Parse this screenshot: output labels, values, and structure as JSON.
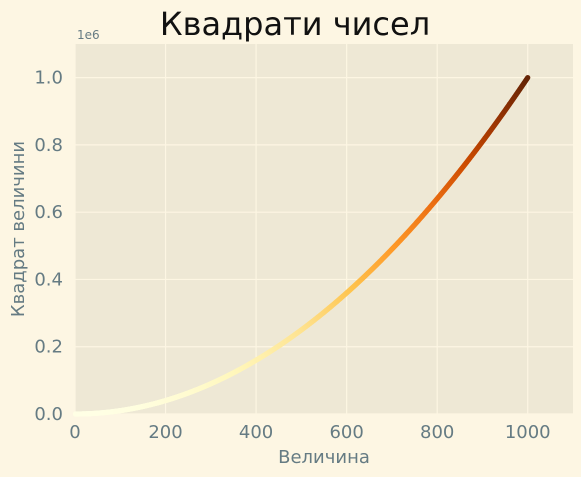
{
  "chart_data": {
    "type": "scatter",
    "title": "Квадрати чисел",
    "xlabel": "Величина",
    "ylabel": "Квадрат величини",
    "y_offset_text": "1e6",
    "xlim": [
      0,
      1100
    ],
    "ylim": [
      0,
      1100000
    ],
    "x_ticks": [
      0,
      200,
      400,
      600,
      800,
      1000
    ],
    "x_tick_labels": [
      "0",
      "200",
      "400",
      "600",
      "800",
      "1000"
    ],
    "y_ticks": [
      0,
      200000,
      400000,
      600000,
      800000,
      1000000
    ],
    "y_tick_labels": [
      "0.0",
      "0.2",
      "0.4",
      "0.6",
      "0.8",
      "1.0"
    ],
    "grid": true,
    "series": [
      {
        "x_start": 1,
        "x_end": 1000,
        "x_step": 1,
        "y_formula": "x^2",
        "colormap": "YlOrBr",
        "color_by": "y"
      }
    ],
    "colors": {
      "background": "#fdf6e3",
      "plot_background": "#eee8d5",
      "grid": "#fdf6e3",
      "colormap_stops": [
        "#ffffe5",
        "#fff7bc",
        "#fee391",
        "#fec44f",
        "#fe9929",
        "#ec7014",
        "#cc4c02",
        "#993404",
        "#662506"
      ]
    }
  }
}
